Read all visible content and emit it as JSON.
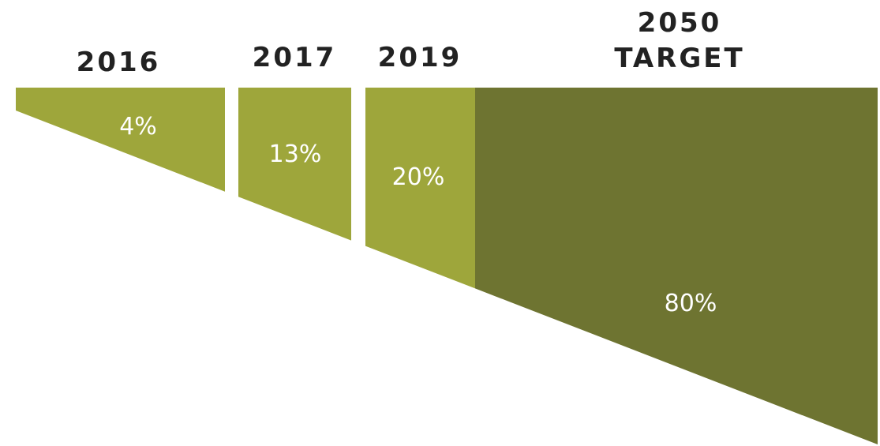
{
  "chart_data": {
    "type": "area",
    "categories": [
      "2016",
      "2017",
      "2019",
      "2050 TARGET"
    ],
    "category_lines": [
      [
        "2016"
      ],
      [
        "2017"
      ],
      [
        "2019"
      ],
      [
        "2050",
        "TARGET"
      ]
    ],
    "values": [
      4,
      13,
      20,
      80
    ],
    "value_labels": [
      "4%",
      "13%",
      "20%",
      "80%"
    ],
    "title": "",
    "xlabel": "",
    "ylabel": "",
    "ylim": [
      0,
      100
    ],
    "grid": false,
    "legend": "none",
    "colors": {
      "light_segment": "#9ea63b",
      "target_segment": "#6e7431",
      "label_text": "#222222",
      "value_text": "#ffffff"
    }
  }
}
